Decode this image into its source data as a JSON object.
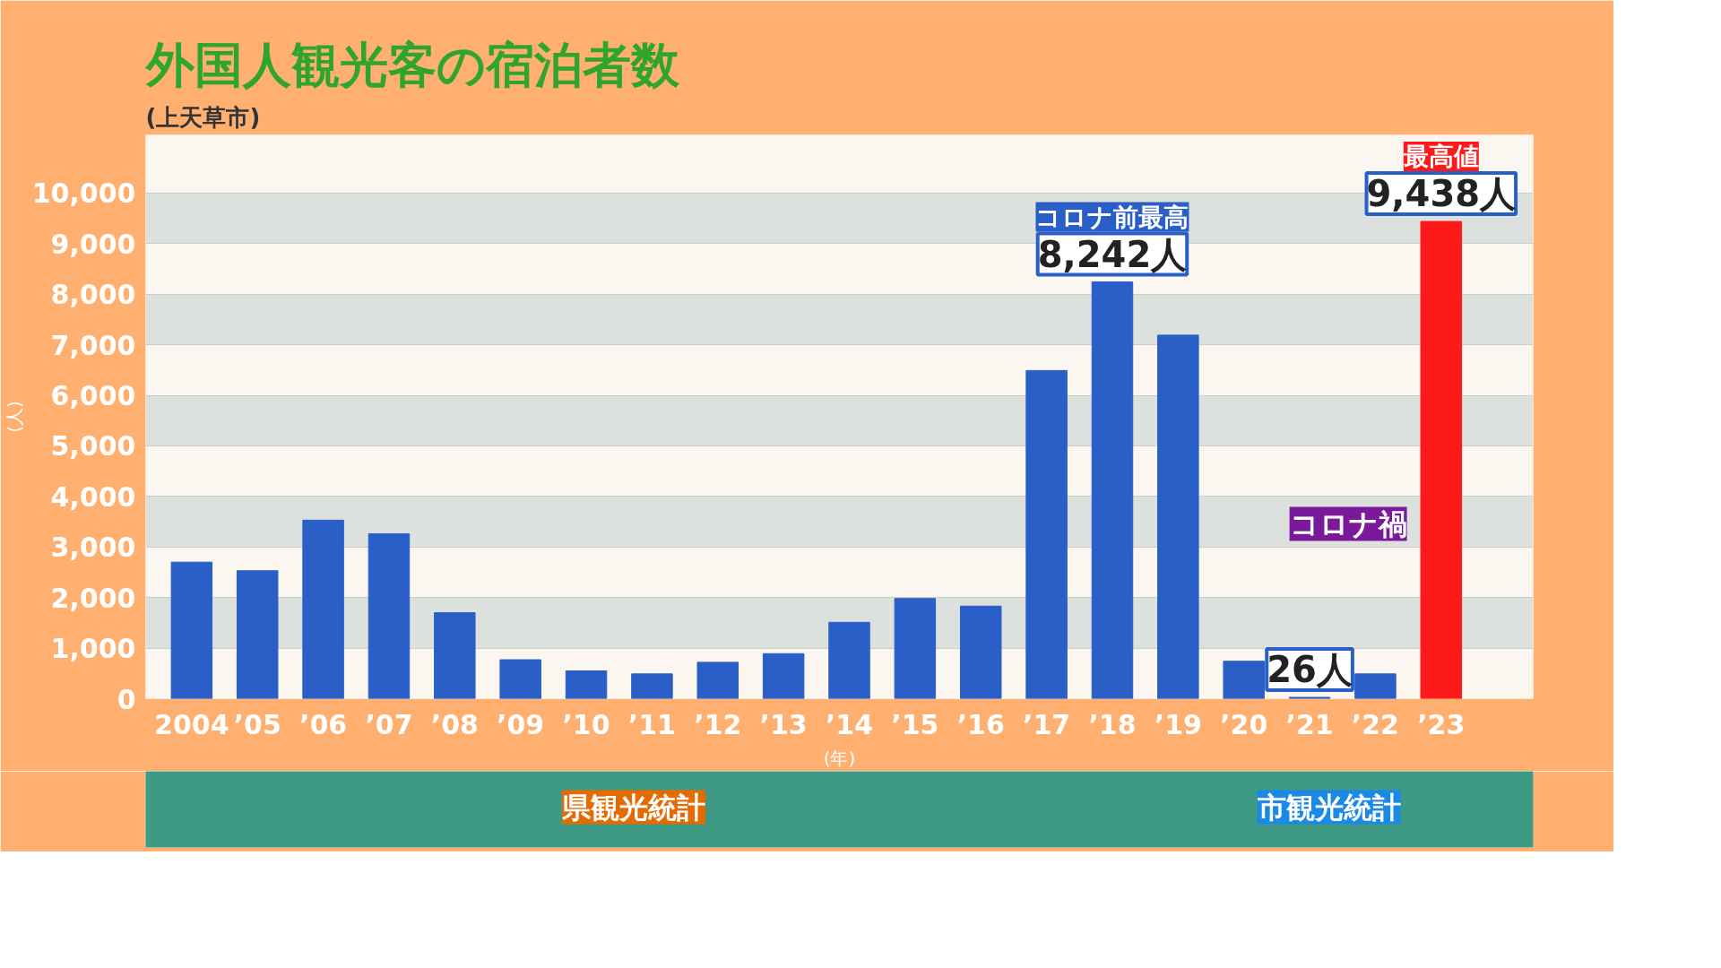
{
  "chart_data": {
    "type": "bar",
    "title": "外国人観光客の宿泊者数",
    "subtitle": "(上天草市)",
    "ylabel": "(人)",
    "xlabel": "(年)",
    "categories": [
      "2004",
      "’05",
      "’06",
      "’07",
      "’08",
      "’09",
      "’10",
      "’11",
      "’12",
      "’13",
      "’14",
      "’15",
      "’16",
      "’17",
      "’18",
      "’19",
      "’20",
      "’21",
      "’22",
      "’23"
    ],
    "values": [
      2700,
      2530,
      3530,
      3260,
      1700,
      770,
      550,
      490,
      720,
      890,
      1510,
      1980,
      1830,
      6490,
      8242,
      7190,
      740,
      26,
      490,
      9438
    ],
    "colors": [
      "#2a5fc8",
      "#2a5fc8",
      "#2a5fc8",
      "#2a5fc8",
      "#2a5fc8",
      "#2a5fc8",
      "#2a5fc8",
      "#2a5fc8",
      "#2a5fc8",
      "#2a5fc8",
      "#2a5fc8",
      "#2a5fc8",
      "#2a5fc8",
      "#2a5fc8",
      "#2a5fc8",
      "#2a5fc8",
      "#2a5fc8",
      "#2a5fc8",
      "#2a5fc8",
      "#ff1a1a"
    ],
    "value_labels": [
      null,
      null,
      null,
      null,
      null,
      null,
      null,
      null,
      null,
      null,
      null,
      null,
      null,
      null,
      "8,242人",
      null,
      null,
      "26人",
      null,
      "9,438人"
    ],
    "ylim": [
      0,
      11150
    ],
    "yticks": [
      0,
      {
        "value": 1000,
        "label": "1,000"
      },
      {
        "value": 2000,
        "label": "2,000"
      },
      {
        "value": 3000,
        "label": "3,000"
      },
      {
        "value": 4000,
        "label": "4,000"
      },
      {
        "value": 5000,
        "label": "5,000"
      },
      {
        "value": 6000,
        "label": "6,000"
      },
      {
        "value": 7000,
        "label": "7,000"
      },
      {
        "value": 8000,
        "label": "8,000"
      },
      {
        "value": 9000,
        "label": "9,000"
      },
      {
        "value": 10000,
        "label": "10,000"
      }
    ],
    "grid": "y",
    "annotations": [
      {
        "text": "コロナ前最高",
        "x": "’18",
        "y": 8242
      },
      {
        "text": "最高値",
        "x": "’23",
        "y": 9438
      },
      "コロナ禍",
      "県観光統計",
      "市観光統計"
    ]
  }
}
